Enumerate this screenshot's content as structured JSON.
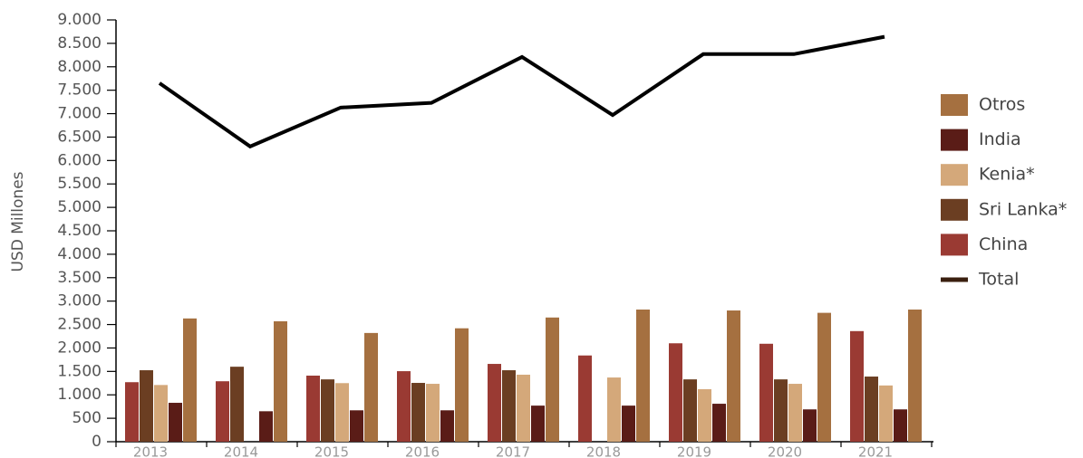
{
  "chart_data": {
    "type": "bar",
    "y_label": "USD Millones",
    "categories": [
      "2013",
      "2014",
      "2015",
      "2016",
      "2017",
      "2018",
      "2019",
      "2020",
      "2021"
    ],
    "series": [
      {
        "name": "China",
        "type": "bar",
        "color": "#9a3a33",
        "values": [
          1270,
          1290,
          1410,
          1505,
          1660,
          1840,
          2100,
          2090,
          2360
        ]
      },
      {
        "name": "Sri Lanka*",
        "type": "bar",
        "color": "#6b3e22",
        "values": [
          1525,
          1600,
          1330,
          1255,
          1525,
          null,
          1330,
          1330,
          1390
        ]
      },
      {
        "name": "Kenia*",
        "type": "bar",
        "color": "#d4a87a",
        "values": [
          1210,
          null,
          1250,
          1235,
          1430,
          1370,
          1120,
          1235,
          1200
        ]
      },
      {
        "name": "India",
        "type": "bar",
        "color": "#5a1c17",
        "values": [
          830,
          650,
          670,
          670,
          770,
          770,
          810,
          690,
          690
        ]
      },
      {
        "name": "Otros",
        "type": "bar",
        "color": "#a57040",
        "values": [
          2630,
          2570,
          2320,
          2420,
          2650,
          2820,
          2800,
          2750,
          2820
        ]
      },
      {
        "name": "Total",
        "type": "line",
        "color": "#000000",
        "legend_color": "#3a1f0f",
        "values": [
          7650,
          6300,
          7130,
          7230,
          8210,
          6970,
          8270,
          8270,
          8640
        ]
      }
    ],
    "ylim": [
      0,
      9000
    ],
    "yticks": [
      0,
      500,
      {
        "value": 1000,
        "label": "1.000"
      },
      {
        "value": 1500,
        "label": "1.500"
      },
      {
        "value": 2000,
        "label": "2.000"
      },
      {
        "value": 2500,
        "label": "2.500"
      },
      {
        "value": 3000,
        "label": "3.000"
      },
      {
        "value": 3500,
        "label": "3.500"
      },
      {
        "value": 4000,
        "label": "4.000"
      },
      {
        "value": 4500,
        "label": "4.500"
      },
      {
        "value": 5000,
        "label": "5.000"
      },
      {
        "value": 5500,
        "label": "5.500"
      },
      {
        "value": 6000,
        "label": "6.000"
      },
      {
        "value": 6500,
        "label": "6.500"
      },
      {
        "value": 7000,
        "label": "7.000"
      },
      {
        "value": 7500,
        "label": "7.500"
      },
      {
        "value": 8000,
        "label": "8.000"
      },
      {
        "value": 8500,
        "label": "8.500"
      },
      {
        "value": 9000,
        "label": "9.000"
      }
    ],
    "legend": "right"
  }
}
